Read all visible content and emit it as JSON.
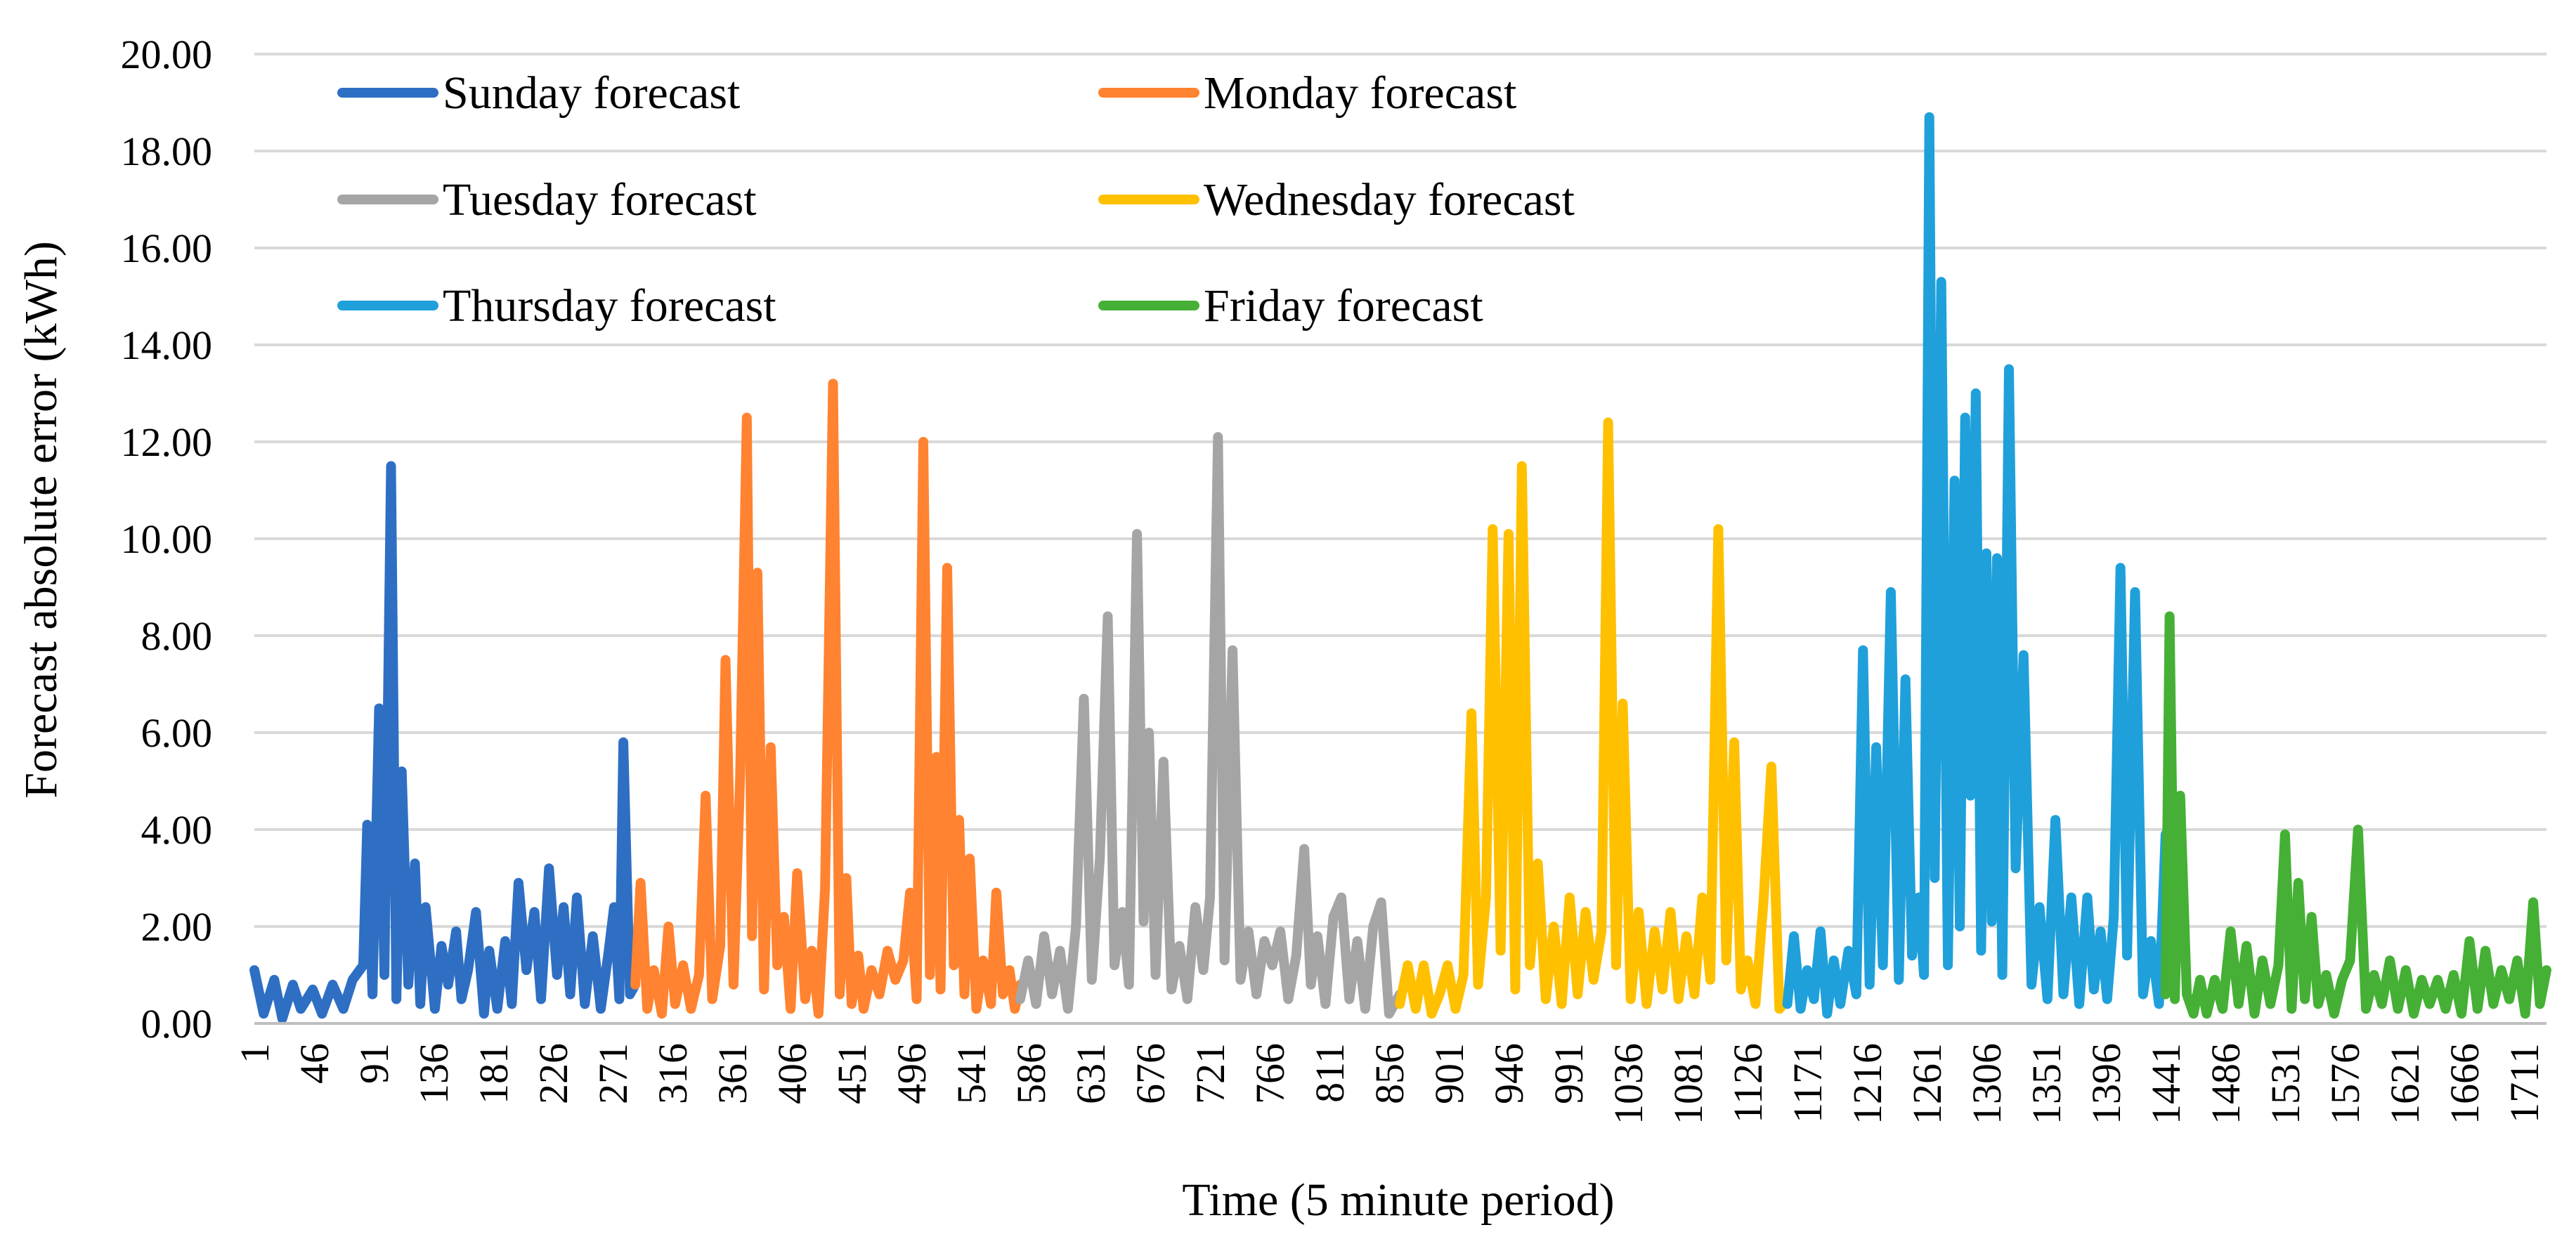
{
  "chart_data": {
    "type": "line",
    "title": "",
    "xlabel": "Time (5 minute period)",
    "ylabel": "Forecast absolute error (kWh)",
    "ylim": [
      0,
      20
    ],
    "xlim": [
      1,
      1728
    ],
    "yticks": [
      "0.00",
      "2.00",
      "4.00",
      "6.00",
      "8.00",
      "10.00",
      "12.00",
      "14.00",
      "16.00",
      "18.00",
      "20.00"
    ],
    "xticks": [
      "1",
      "46",
      "91",
      "136",
      "181",
      "226",
      "271",
      "316",
      "361",
      "406",
      "451",
      "496",
      "541",
      "586",
      "631",
      "676",
      "721",
      "766",
      "811",
      "856",
      "901",
      "946",
      "991",
      "1036",
      "1081",
      "1126",
      "1171",
      "1216",
      "1261",
      "1306",
      "1351",
      "1396",
      "1441",
      "1486",
      "1531",
      "1576",
      "1621",
      "1666",
      "1711"
    ],
    "legend_position": "top-left",
    "series": [
      {
        "name": "Sunday forecast",
        "color": "#2e6fc3",
        "x": [
          1,
          8,
          16,
          22,
          30,
          36,
          45,
          52,
          60,
          68,
          75,
          83,
          86,
          90,
          95,
          99,
          104,
          108,
          112,
          117,
          122,
          126,
          130,
          137,
          142,
          147,
          153,
          157,
          162,
          168,
          174,
          178,
          184,
          190,
          195,
          200,
          206,
          212,
          217,
          223,
          229,
          234,
          239,
          244,
          250,
          256,
          262,
          268,
          272,
          276,
          279,
          284,
          288
        ],
        "values": [
          1.1,
          0.2,
          0.9,
          0.1,
          0.8,
          0.3,
          0.7,
          0.2,
          0.8,
          0.3,
          0.9,
          1.2,
          4.1,
          0.6,
          6.5,
          1.0,
          11.5,
          0.5,
          5.2,
          0.8,
          3.3,
          0.4,
          2.4,
          0.3,
          1.6,
          0.8,
          1.9,
          0.5,
          1.1,
          2.3,
          0.2,
          1.5,
          0.3,
          1.7,
          0.4,
          2.9,
          1.1,
          2.3,
          0.5,
          3.2,
          1.0,
          2.4,
          0.6,
          2.6,
          0.4,
          1.8,
          0.3,
          1.5,
          2.4,
          0.5,
          5.8,
          0.6,
          0.8
        ]
      },
      {
        "name": "Monday forecast",
        "color": "#ff8330",
        "x": [
          288,
          292,
          297,
          302,
          308,
          313,
          318,
          324,
          330,
          336,
          341,
          346,
          352,
          356,
          362,
          367,
          372,
          376,
          380,
          385,
          390,
          395,
          400,
          405,
          410,
          416,
          421,
          426,
          431,
          437,
          442,
          447,
          451,
          456,
          460,
          466,
          472,
          478,
          484,
          490,
          495,
          500,
          505,
          510,
          515,
          518,
          523,
          528,
          532,
          536,
          540,
          545,
          550,
          556,
          560,
          565,
          570,
          574,
          578
        ],
        "values": [
          0.8,
          2.9,
          0.3,
          1.1,
          0.2,
          2.0,
          0.4,
          1.2,
          0.3,
          1.0,
          4.7,
          0.5,
          1.6,
          7.5,
          0.8,
          5.1,
          12.5,
          1.8,
          9.3,
          0.7,
          5.7,
          1.2,
          2.2,
          0.3,
          3.1,
          0.5,
          1.5,
          0.2,
          2.8,
          13.2,
          0.6,
          3.0,
          0.4,
          1.4,
          0.3,
          1.1,
          0.6,
          1.5,
          0.9,
          1.3,
          2.7,
          0.5,
          12.0,
          1.0,
          5.5,
          0.7,
          9.4,
          1.2,
          4.2,
          0.6,
          3.4,
          0.3,
          1.3,
          0.4,
          2.7,
          0.6,
          1.1,
          0.3,
          0.8
        ]
      },
      {
        "name": "Tuesday forecast",
        "color": "#a5a5a5",
        "x": [
          578,
          584,
          590,
          596,
          602,
          608,
          614,
          620,
          626,
          632,
          638,
          644,
          649,
          655,
          660,
          666,
          671,
          675,
          680,
          686,
          692,
          698,
          704,
          710,
          716,
          721,
          727,
          732,
          738,
          744,
          750,
          756,
          762,
          768,
          774,
          780,
          786,
          792,
          797,
          802,
          808,
          814,
          820,
          826,
          832,
          838,
          844,
          850,
          856,
          864
        ],
        "values": [
          0.5,
          1.3,
          0.4,
          1.8,
          0.6,
          1.5,
          0.3,
          2.0,
          6.7,
          0.9,
          3.4,
          8.4,
          1.2,
          2.3,
          0.8,
          10.1,
          2.1,
          6.0,
          1.0,
          5.4,
          0.7,
          1.6,
          0.5,
          2.4,
          1.1,
          2.6,
          12.1,
          1.3,
          7.7,
          0.9,
          1.9,
          0.6,
          1.7,
          1.2,
          1.9,
          0.5,
          1.4,
          3.6,
          0.8,
          1.8,
          0.4,
          2.2,
          2.6,
          0.5,
          1.7,
          0.3,
          2.0,
          2.5,
          0.2,
          0.6
        ]
      },
      {
        "name": "Wednesday forecast",
        "color": "#ffc000",
        "x": [
          864,
          870,
          876,
          882,
          888,
          894,
          900,
          906,
          912,
          918,
          923,
          929,
          934,
          940,
          946,
          951,
          956,
          962,
          968,
          974,
          980,
          986,
          992,
          998,
          1004,
          1010,
          1016,
          1021,
          1027,
          1032,
          1038,
          1044,
          1050,
          1056,
          1062,
          1068,
          1074,
          1080,
          1086,
          1092,
          1098,
          1104,
          1110,
          1116,
          1121,
          1126,
          1132,
          1138,
          1144,
          1150,
          1156
        ],
        "values": [
          0.4,
          1.2,
          0.3,
          1.2,
          0.2,
          0.6,
          1.2,
          0.3,
          1.0,
          6.4,
          0.8,
          2.6,
          10.2,
          1.5,
          10.1,
          0.7,
          11.5,
          1.2,
          3.3,
          0.5,
          2.0,
          0.4,
          2.6,
          0.6,
          2.3,
          0.9,
          1.9,
          12.4,
          1.2,
          6.6,
          0.5,
          2.3,
          0.4,
          1.9,
          0.7,
          2.3,
          0.5,
          1.8,
          0.6,
          2.6,
          0.9,
          10.2,
          1.3,
          5.8,
          0.7,
          1.3,
          0.4,
          2.5,
          5.3,
          0.3,
          0.5
        ]
      },
      {
        "name": "Thursday forecast",
        "color": "#1fa0da",
        "x": [
          1156,
          1161,
          1166,
          1171,
          1176,
          1181,
          1186,
          1191,
          1196,
          1202,
          1208,
          1213,
          1218,
          1223,
          1228,
          1234,
          1240,
          1245,
          1250,
          1255,
          1259,
          1263,
          1267,
          1272,
          1277,
          1282,
          1286,
          1290,
          1294,
          1298,
          1302,
          1306,
          1310,
          1314,
          1318,
          1323,
          1328,
          1334,
          1340,
          1346,
          1352,
          1358,
          1364,
          1370,
          1376,
          1382,
          1387,
          1392,
          1397,
          1402,
          1407,
          1412,
          1418,
          1424,
          1430,
          1436,
          1441
        ],
        "values": [
          0.4,
          1.8,
          0.3,
          1.1,
          0.5,
          1.9,
          0.2,
          1.3,
          0.4,
          1.5,
          0.6,
          7.7,
          0.8,
          5.7,
          1.2,
          8.9,
          0.9,
          7.1,
          1.4,
          2.6,
          1.0,
          18.7,
          3.0,
          15.3,
          1.2,
          11.2,
          2.0,
          12.5,
          4.7,
          13.0,
          1.5,
          9.7,
          2.1,
          9.6,
          1.0,
          13.5,
          3.2,
          7.6,
          0.8,
          2.4,
          0.5,
          4.2,
          0.6,
          2.6,
          0.4,
          2.6,
          0.7,
          1.9,
          0.5,
          2.2,
          9.4,
          1.4,
          8.9,
          0.6,
          1.7,
          0.4,
          3.9
        ]
      },
      {
        "name": "Friday forecast",
        "color": "#45b035",
        "x": [
          1441,
          1444,
          1448,
          1452,
          1457,
          1462,
          1467,
          1472,
          1478,
          1484,
          1490,
          1496,
          1502,
          1508,
          1514,
          1520,
          1526,
          1531,
          1536,
          1541,
          1546,
          1551,
          1556,
          1562,
          1568,
          1574,
          1580,
          1586,
          1592,
          1598,
          1604,
          1610,
          1616,
          1622,
          1628,
          1634,
          1640,
          1646,
          1652,
          1658,
          1664,
          1670,
          1676,
          1682,
          1688,
          1694,
          1700,
          1706,
          1712,
          1718,
          1723,
          1728
        ],
        "values": [
          0.6,
          8.4,
          0.5,
          4.7,
          0.6,
          0.2,
          0.9,
          0.2,
          0.9,
          0.3,
          1.9,
          0.4,
          1.6,
          0.2,
          1.3,
          0.4,
          1.2,
          3.9,
          0.3,
          2.9,
          0.5,
          2.2,
          0.4,
          1.0,
          0.2,
          0.9,
          1.3,
          4.0,
          0.3,
          1.0,
          0.4,
          1.3,
          0.3,
          1.1,
          0.2,
          0.9,
          0.4,
          0.9,
          0.3,
          1.0,
          0.2,
          1.7,
          0.3,
          1.5,
          0.4,
          1.1,
          0.5,
          1.3,
          0.2,
          2.5,
          0.4,
          1.1
        ]
      }
    ]
  }
}
